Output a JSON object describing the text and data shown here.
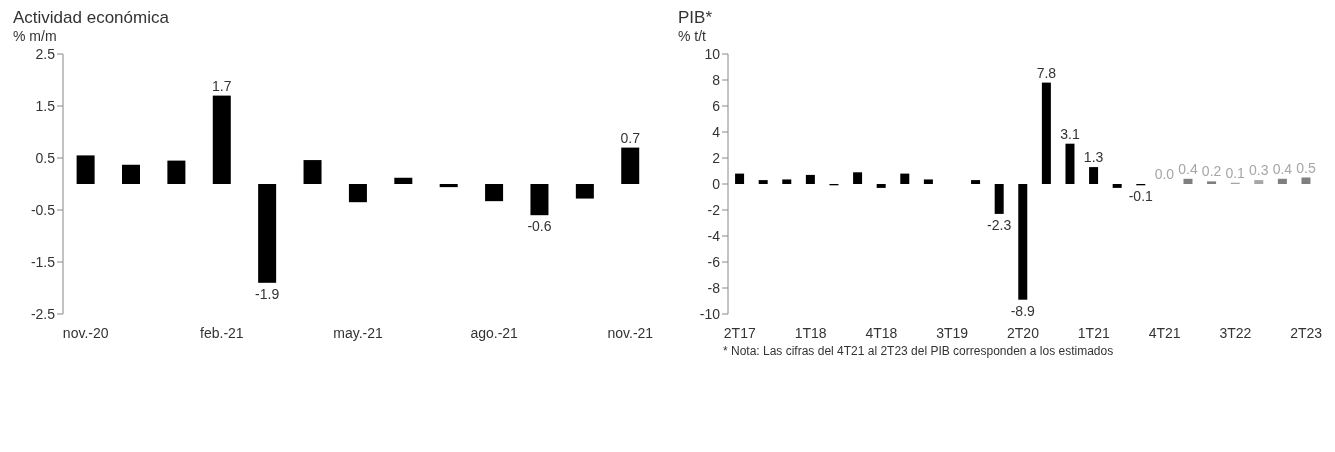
{
  "chart_data": [
    {
      "type": "bar",
      "title": "Actividad económica",
      "ylabel": "% m/m",
      "categories": [
        "nov.-20",
        null,
        null,
        "feb.-21",
        null,
        null,
        "may.-21",
        null,
        null,
        "ago.-21",
        null,
        null,
        "nov.-21"
      ],
      "values": [
        0.55,
        0.37,
        0.45,
        1.7,
        -1.9,
        0.46,
        -0.35,
        0.12,
        -0.06,
        -0.33,
        -0.6,
        -0.28,
        0.7
      ],
      "value_labels": [
        null,
        null,
        null,
        "1.7",
        "-1.9",
        null,
        null,
        null,
        null,
        null,
        "-0.6",
        null,
        "0.7"
      ],
      "color": "#000000",
      "ylim": [
        -2.5,
        2.5
      ],
      "yticks": [
        2.5,
        1.5,
        0.5,
        -0.5,
        -1.5,
        -2.5
      ],
      "grid": false,
      "legend": false
    },
    {
      "type": "bar",
      "title": "PIB*",
      "ylabel": "% t/t",
      "categories": [
        "2T17",
        null,
        null,
        "1T18",
        null,
        null,
        "4T18",
        null,
        null,
        "3T19",
        null,
        null,
        "2T20",
        null,
        null,
        "1T21",
        null,
        null,
        "4T21",
        null,
        null,
        "3T22",
        null,
        null,
        "2T23"
      ],
      "values": [
        0.8,
        0.3,
        0.35,
        0.7,
        -0.1,
        0.9,
        -0.3,
        0.8,
        0.35,
        0,
        0.3,
        -2.3,
        -8.9,
        7.8,
        3.1,
        1.3,
        -0.3,
        -0.1,
        0.0,
        0.4,
        0.2,
        0.1,
        0.3,
        0.4,
        0.5
      ],
      "value_labels": [
        null,
        null,
        null,
        null,
        null,
        null,
        null,
        null,
        null,
        null,
        null,
        "-2.3",
        "-8.9",
        "7.8",
        "3.1",
        "1.3",
        null,
        "-0.1",
        "0.0",
        "0.4",
        "0.2",
        "0.1",
        "0.3",
        "0.4",
        "0.5"
      ],
      "colors": [
        "#000000",
        "#000000",
        "#000000",
        "#000000",
        "#000000",
        "#000000",
        "#000000",
        "#000000",
        "#000000",
        "#000000",
        "#000000",
        "#000000",
        "#000000",
        "#000000",
        "#000000",
        "#000000",
        "#000000",
        "#000000",
        "#7f7f7f",
        "#7f7f7f",
        "#7f7f7f",
        "#a6a6a6",
        "#a6a6a6",
        "#7f7f7f",
        "#7f7f7f"
      ],
      "ylim": [
        -10,
        10
      ],
      "yticks": [
        10,
        8,
        6,
        4,
        2,
        0,
        -2,
        -4,
        -6,
        -8,
        -10
      ],
      "grid": false,
      "legend": false,
      "annotations": [
        "* Nota: Las cifras del 4T21 al 2T23 del PIB corresponden a los estimados"
      ]
    }
  ]
}
